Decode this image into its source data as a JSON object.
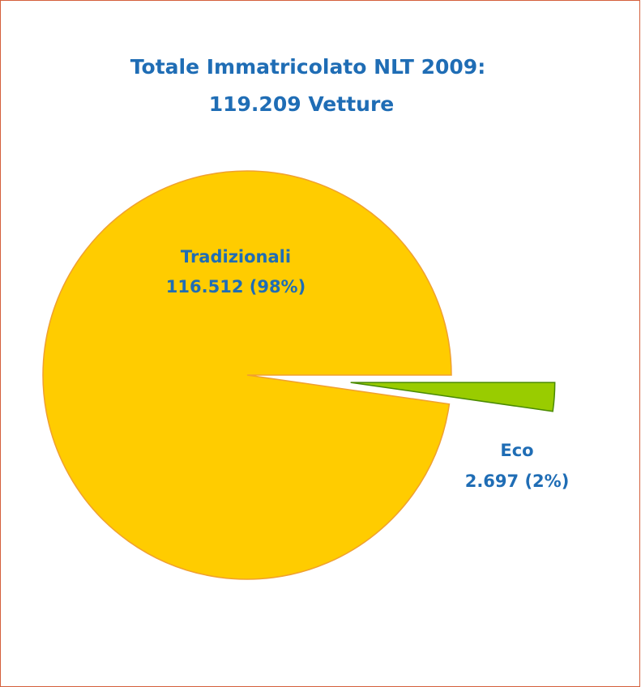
{
  "chart_data": {
    "type": "pie",
    "title": "Totale Immatricolato NLT 2009:",
    "subtitle": "119.209 Vetture",
    "categories": [
      "Eco",
      "Tradizionali"
    ],
    "values": [
      2697,
      116512
    ],
    "value_labels": [
      "2.697 (2%)",
      "116.512  (98%)"
    ],
    "colors": [
      "#99cc00",
      "#ffcc00"
    ],
    "exploded": [
      "Eco"
    ]
  }
}
